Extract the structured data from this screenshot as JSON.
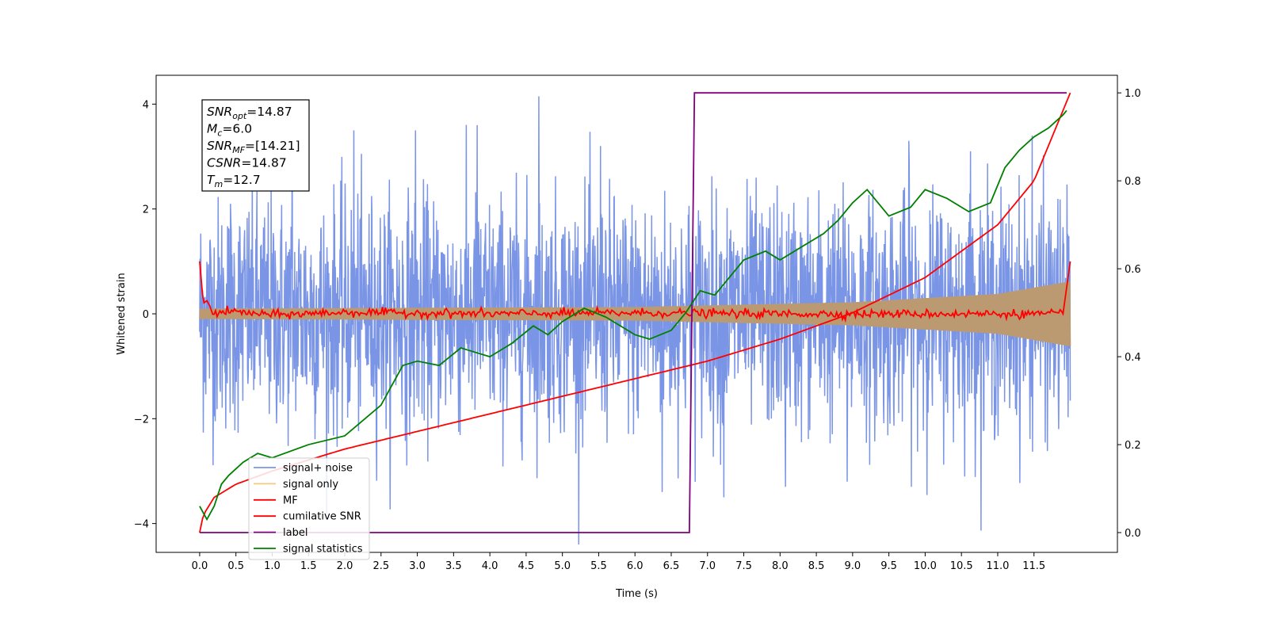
{
  "chart_data": {
    "type": "line",
    "title": "",
    "xlabel": "Time (s)",
    "ylabel": "Whitened strain",
    "xlim": [
      -0.6,
      12.65
    ],
    "ylim": [
      -4.55,
      4.55
    ],
    "y2lim": [
      -0.045,
      1.04
    ],
    "grid": false,
    "legend_position": "lower-left",
    "xticks": [
      0.0,
      0.5,
      1.0,
      1.5,
      2.0,
      2.5,
      3.0,
      3.5,
      4.0,
      4.5,
      5.0,
      5.5,
      6.0,
      6.5,
      7.0,
      7.5,
      8.0,
      8.5,
      9.0,
      9.5,
      10.0,
      10.5,
      11.0,
      11.5
    ],
    "xtick_labels": [
      "0.0",
      "0.5",
      "1.0",
      "1.5",
      "2.0",
      "2.5",
      "3.0",
      "3.5",
      "4.0",
      "4.5",
      "5.0",
      "5.5",
      "6.0",
      "6.5",
      "7.0",
      "7.5",
      "8.0",
      "8.5",
      "9.0",
      "9.5",
      "10.0",
      "10.5",
      "11.0",
      "11.5"
    ],
    "yticks": [
      -4,
      -2,
      0,
      2,
      4
    ],
    "ytick_labels": [
      "−4",
      "−2",
      "0",
      "2",
      "4"
    ],
    "y2ticks": [
      0.0,
      0.2,
      0.4,
      0.6,
      0.8,
      1.0
    ],
    "y2tick_labels": [
      "0.0",
      "0.2",
      "0.4",
      "0.6",
      "0.8",
      "1.0"
    ],
    "annotation": {
      "lines": [
        {
          "base": "SNR",
          "sub": "opt",
          "rest": "=14.87"
        },
        {
          "base": "M",
          "sub": "c",
          "rest": "=6.0"
        },
        {
          "base": "SNR",
          "sub": "MF",
          "rest": "=[14.21]"
        },
        {
          "base": "CSNR",
          "sub": "",
          "rest": "=14.87"
        },
        {
          "base": "T",
          "sub": "m",
          "rest": "=12.7"
        }
      ]
    },
    "series": [
      {
        "name": "signal+ noise",
        "color": "#7b95e6",
        "axis": "left",
        "description_noise_std": 1.1,
        "x_range": [
          0.0,
          12.0
        ],
        "peak_values": [
          2.1,
          3.6,
          3.5,
          3.5,
          3.6,
          4.15,
          3.2,
          -3.4,
          -3.5,
          -3.3,
          -3.2,
          3.3,
          3.1,
          3.4,
          3.3
        ]
      },
      {
        "name": "signal only",
        "color": "#f7c97a",
        "axis": "left",
        "envelope": [
          [
            0.0,
            0.1
          ],
          [
            6.0,
            0.13
          ],
          [
            9.0,
            0.22
          ],
          [
            11.0,
            0.38
          ],
          [
            12.0,
            0.62
          ]
        ]
      },
      {
        "name": "MF",
        "color": "#ff0000",
        "axis": "left",
        "x": [
          0.0,
          0.05,
          0.1,
          0.2,
          0.4,
          1.0,
          2.0,
          4.0,
          6.0,
          8.0,
          10.0,
          11.9,
          11.95,
          12.0
        ],
        "y": [
          1.0,
          0.2,
          0.25,
          0.0,
          0.05,
          -0.02,
          0.03,
          0.0,
          0.02,
          0.0,
          0.0,
          0.0,
          0.5,
          1.0
        ]
      },
      {
        "name": "cumilative SNR",
        "color": "#ff0000",
        "axis": "right",
        "x": [
          0.0,
          0.05,
          0.2,
          0.5,
          1.0,
          2.0,
          3.0,
          4.0,
          5.0,
          6.0,
          7.0,
          8.0,
          9.0,
          10.0,
          11.0,
          11.5,
          12.0
        ],
        "y": [
          0.0,
          0.04,
          0.08,
          0.11,
          0.14,
          0.19,
          0.23,
          0.27,
          0.31,
          0.35,
          0.39,
          0.44,
          0.5,
          0.58,
          0.7,
          0.8,
          1.0
        ]
      },
      {
        "name": "label",
        "color": "#800080",
        "axis": "right",
        "x": [
          0.0,
          6.75,
          6.82,
          11.95
        ],
        "y": [
          0.0,
          0.0,
          1.0,
          1.0
        ]
      },
      {
        "name": "signal statistics",
        "color": "#008000",
        "axis": "right",
        "x": [
          0.0,
          0.1,
          0.2,
          0.3,
          0.4,
          0.6,
          0.8,
          1.0,
          1.5,
          2.0,
          2.5,
          2.8,
          3.0,
          3.3,
          3.6,
          3.8,
          4.0,
          4.3,
          4.6,
          4.8,
          5.0,
          5.3,
          5.6,
          5.8,
          6.0,
          6.2,
          6.5,
          6.7,
          6.9,
          7.1,
          7.3,
          7.5,
          7.8,
          8.0,
          8.3,
          8.6,
          8.8,
          9.0,
          9.2,
          9.5,
          9.8,
          10.0,
          10.3,
          10.6,
          10.9,
          11.1,
          11.3,
          11.5,
          11.7,
          11.9,
          11.95
        ],
        "y": [
          0.06,
          0.03,
          0.06,
          0.11,
          0.13,
          0.16,
          0.18,
          0.17,
          0.2,
          0.22,
          0.29,
          0.38,
          0.39,
          0.38,
          0.42,
          0.41,
          0.4,
          0.43,
          0.47,
          0.45,
          0.48,
          0.51,
          0.49,
          0.47,
          0.45,
          0.44,
          0.46,
          0.5,
          0.55,
          0.54,
          0.58,
          0.62,
          0.64,
          0.62,
          0.65,
          0.68,
          0.71,
          0.75,
          0.78,
          0.72,
          0.74,
          0.78,
          0.76,
          0.73,
          0.75,
          0.83,
          0.87,
          0.9,
          0.92,
          0.95,
          0.96
        ]
      }
    ]
  }
}
